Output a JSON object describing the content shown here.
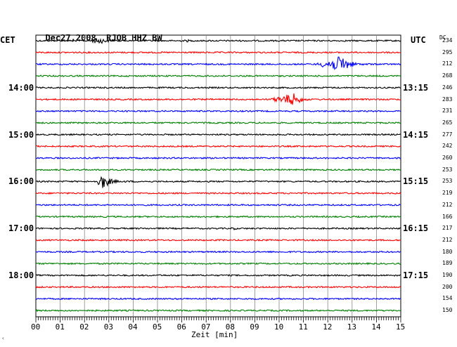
{
  "header": {
    "date": "Dec27,2008",
    "station": "RJOB HHZ BW"
  },
  "left_title": "CET",
  "right_title": "UTC",
  "dc_title": "DC",
  "left_time_labels": [
    {
      "row": 4,
      "text": "14:00"
    },
    {
      "row": 8,
      "text": "15:00"
    },
    {
      "row": 12,
      "text": "16:00"
    },
    {
      "row": 16,
      "text": "17:00"
    },
    {
      "row": 20,
      "text": "18:00"
    }
  ],
  "right_time_labels": [
    {
      "row": 4,
      "text": "13:15"
    },
    {
      "row": 8,
      "text": "14:15"
    },
    {
      "row": 12,
      "text": "15:15"
    },
    {
      "row": 16,
      "text": "16:15"
    },
    {
      "row": 20,
      "text": "17:15"
    }
  ],
  "dc_values": [
    "234",
    "295",
    "212",
    "268",
    "246",
    "283",
    "231",
    "265",
    "277",
    "242",
    "260",
    "253",
    "253",
    "219",
    "212",
    "166",
    "217",
    "212",
    "180",
    "189",
    "190",
    "200",
    "154",
    "150"
  ],
  "trace_colors": [
    "#000000",
    "#ff0000",
    "#0000ff",
    "#008000"
  ],
  "events": [
    {
      "row": 0,
      "start_min": 2.1,
      "end_min": 3.6,
      "peak_min": 2.6,
      "amp": 5
    },
    {
      "row": 0,
      "start_min": 6.0,
      "end_min": 6.5,
      "peak_min": 6.2,
      "amp": 2
    },
    {
      "row": 2,
      "start_min": 11.4,
      "end_min": 13.9,
      "peak_min": 12.6,
      "amp": 12
    },
    {
      "row": 5,
      "start_min": 9.5,
      "end_min": 11.7,
      "peak_min": 10.6,
      "amp": 9
    },
    {
      "row": 12,
      "start_min": 2.5,
      "end_min": 4.1,
      "peak_min": 2.7,
      "amp": 12
    },
    {
      "row": 16,
      "start_min": 7.8,
      "end_min": 8.6,
      "peak_min": 8.1,
      "amp": 2
    }
  ],
  "x_axis": {
    "ticks": [
      "00",
      "01",
      "02",
      "03",
      "04",
      "05",
      "06",
      "07",
      "08",
      "09",
      "10",
      "11",
      "12",
      "13",
      "14",
      "15"
    ],
    "label": "Zeit [min]"
  }
}
